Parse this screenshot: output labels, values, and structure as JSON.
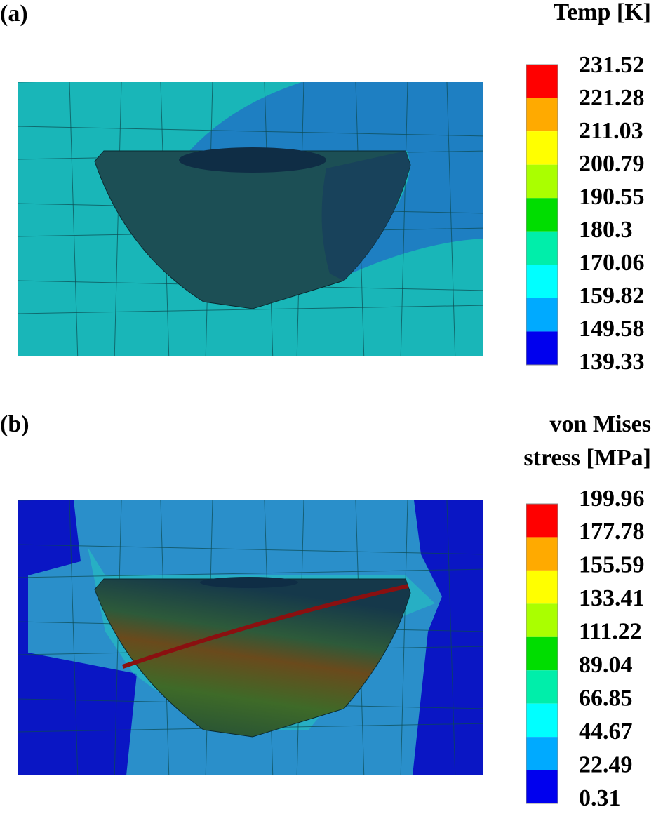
{
  "panels": [
    {
      "label": "(a)",
      "legend_title": [
        "Temp [K]"
      ],
      "ticks": [
        231.52,
        221.28,
        211.03,
        200.79,
        190.55,
        180.3,
        170.06,
        159.82,
        149.58,
        139.33
      ],
      "colors": [
        "#ff0000",
        "#ffaa00",
        "#ffff00",
        "#aaff00",
        "#00dd00",
        "#00eeaa",
        "#00ffff",
        "#00aaff",
        "#0000ee"
      ]
    },
    {
      "label": "(b)",
      "legend_title": [
        "von Mises",
        "stress [MPa]"
      ],
      "ticks": [
        199.96,
        177.78,
        155.59,
        133.41,
        111.22,
        89.04,
        66.85,
        44.67,
        22.49,
        0.31
      ],
      "colors": [
        "#ff0000",
        "#ffaa00",
        "#ffff00",
        "#aaff00",
        "#00dd00",
        "#00eeaa",
        "#00ffff",
        "#00aaff",
        "#0000ee"
      ]
    }
  ]
}
